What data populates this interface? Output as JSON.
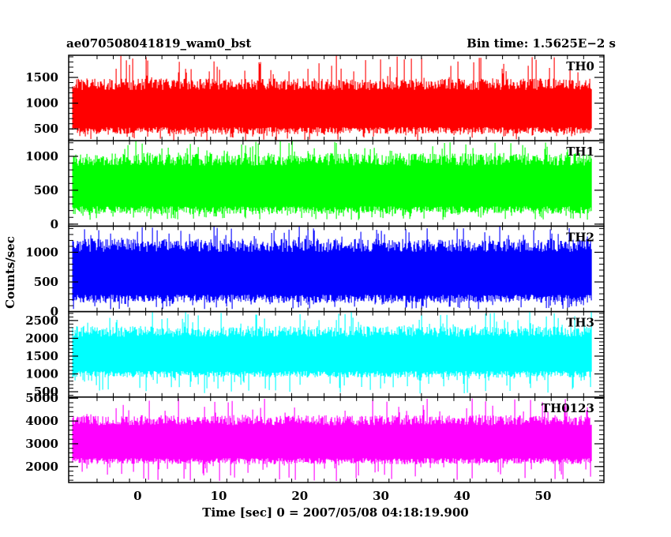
{
  "header": {
    "left_title": "ae070508041819_wam0_bst",
    "right_title": "Bin time: 1.5625E−2 s"
  },
  "chart_data": {
    "type": "line",
    "xlabel": "Time [sec] 0 = 2007/05/08 04:18:19.900",
    "ylabel": "Counts/sec",
    "xlim": [
      -8.5,
      57.5
    ],
    "x_ticks": [
      0,
      10,
      20,
      30,
      40,
      50
    ],
    "x_range_data": [
      -8,
      56
    ],
    "series": [
      {
        "name": "TH0",
        "color": "#ff0000",
        "ylim": [
          270,
          1930
        ],
        "yticks": [
          500,
          1000,
          1500
        ],
        "base_low": 400,
        "base_high": 1300,
        "spike_max": 1930,
        "dip_min": 270
      },
      {
        "name": "TH1",
        "color": "#00ff00",
        "ylim": [
          -30,
          1230
        ],
        "yticks": [
          0,
          500,
          1000
        ],
        "base_low": 150,
        "base_high": 900,
        "spike_max": 1230,
        "dip_min": 60
      },
      {
        "name": "TH2",
        "color": "#0000ff",
        "ylim": [
          0,
          1440
        ],
        "yticks": [
          0,
          500,
          1000
        ],
        "base_low": 150,
        "base_high": 1050,
        "spike_max": 1440,
        "dip_min": 40
      },
      {
        "name": "TH3",
        "color": "#00ffff",
        "ylim": [
          350,
          2750
        ],
        "yticks": [
          500,
          1000,
          1500,
          2000,
          2500
        ],
        "base_low": 900,
        "base_high": 2100,
        "spike_max": 2750,
        "dip_min": 450
      },
      {
        "name": "TH0123",
        "color": "#ff00ff",
        "ylim": [
          1300,
          5050
        ],
        "yticks": [
          2000,
          3000,
          4000,
          5000
        ],
        "base_low": 2100,
        "base_high": 3900,
        "spike_max": 5050,
        "dip_min": 1350
      }
    ]
  }
}
